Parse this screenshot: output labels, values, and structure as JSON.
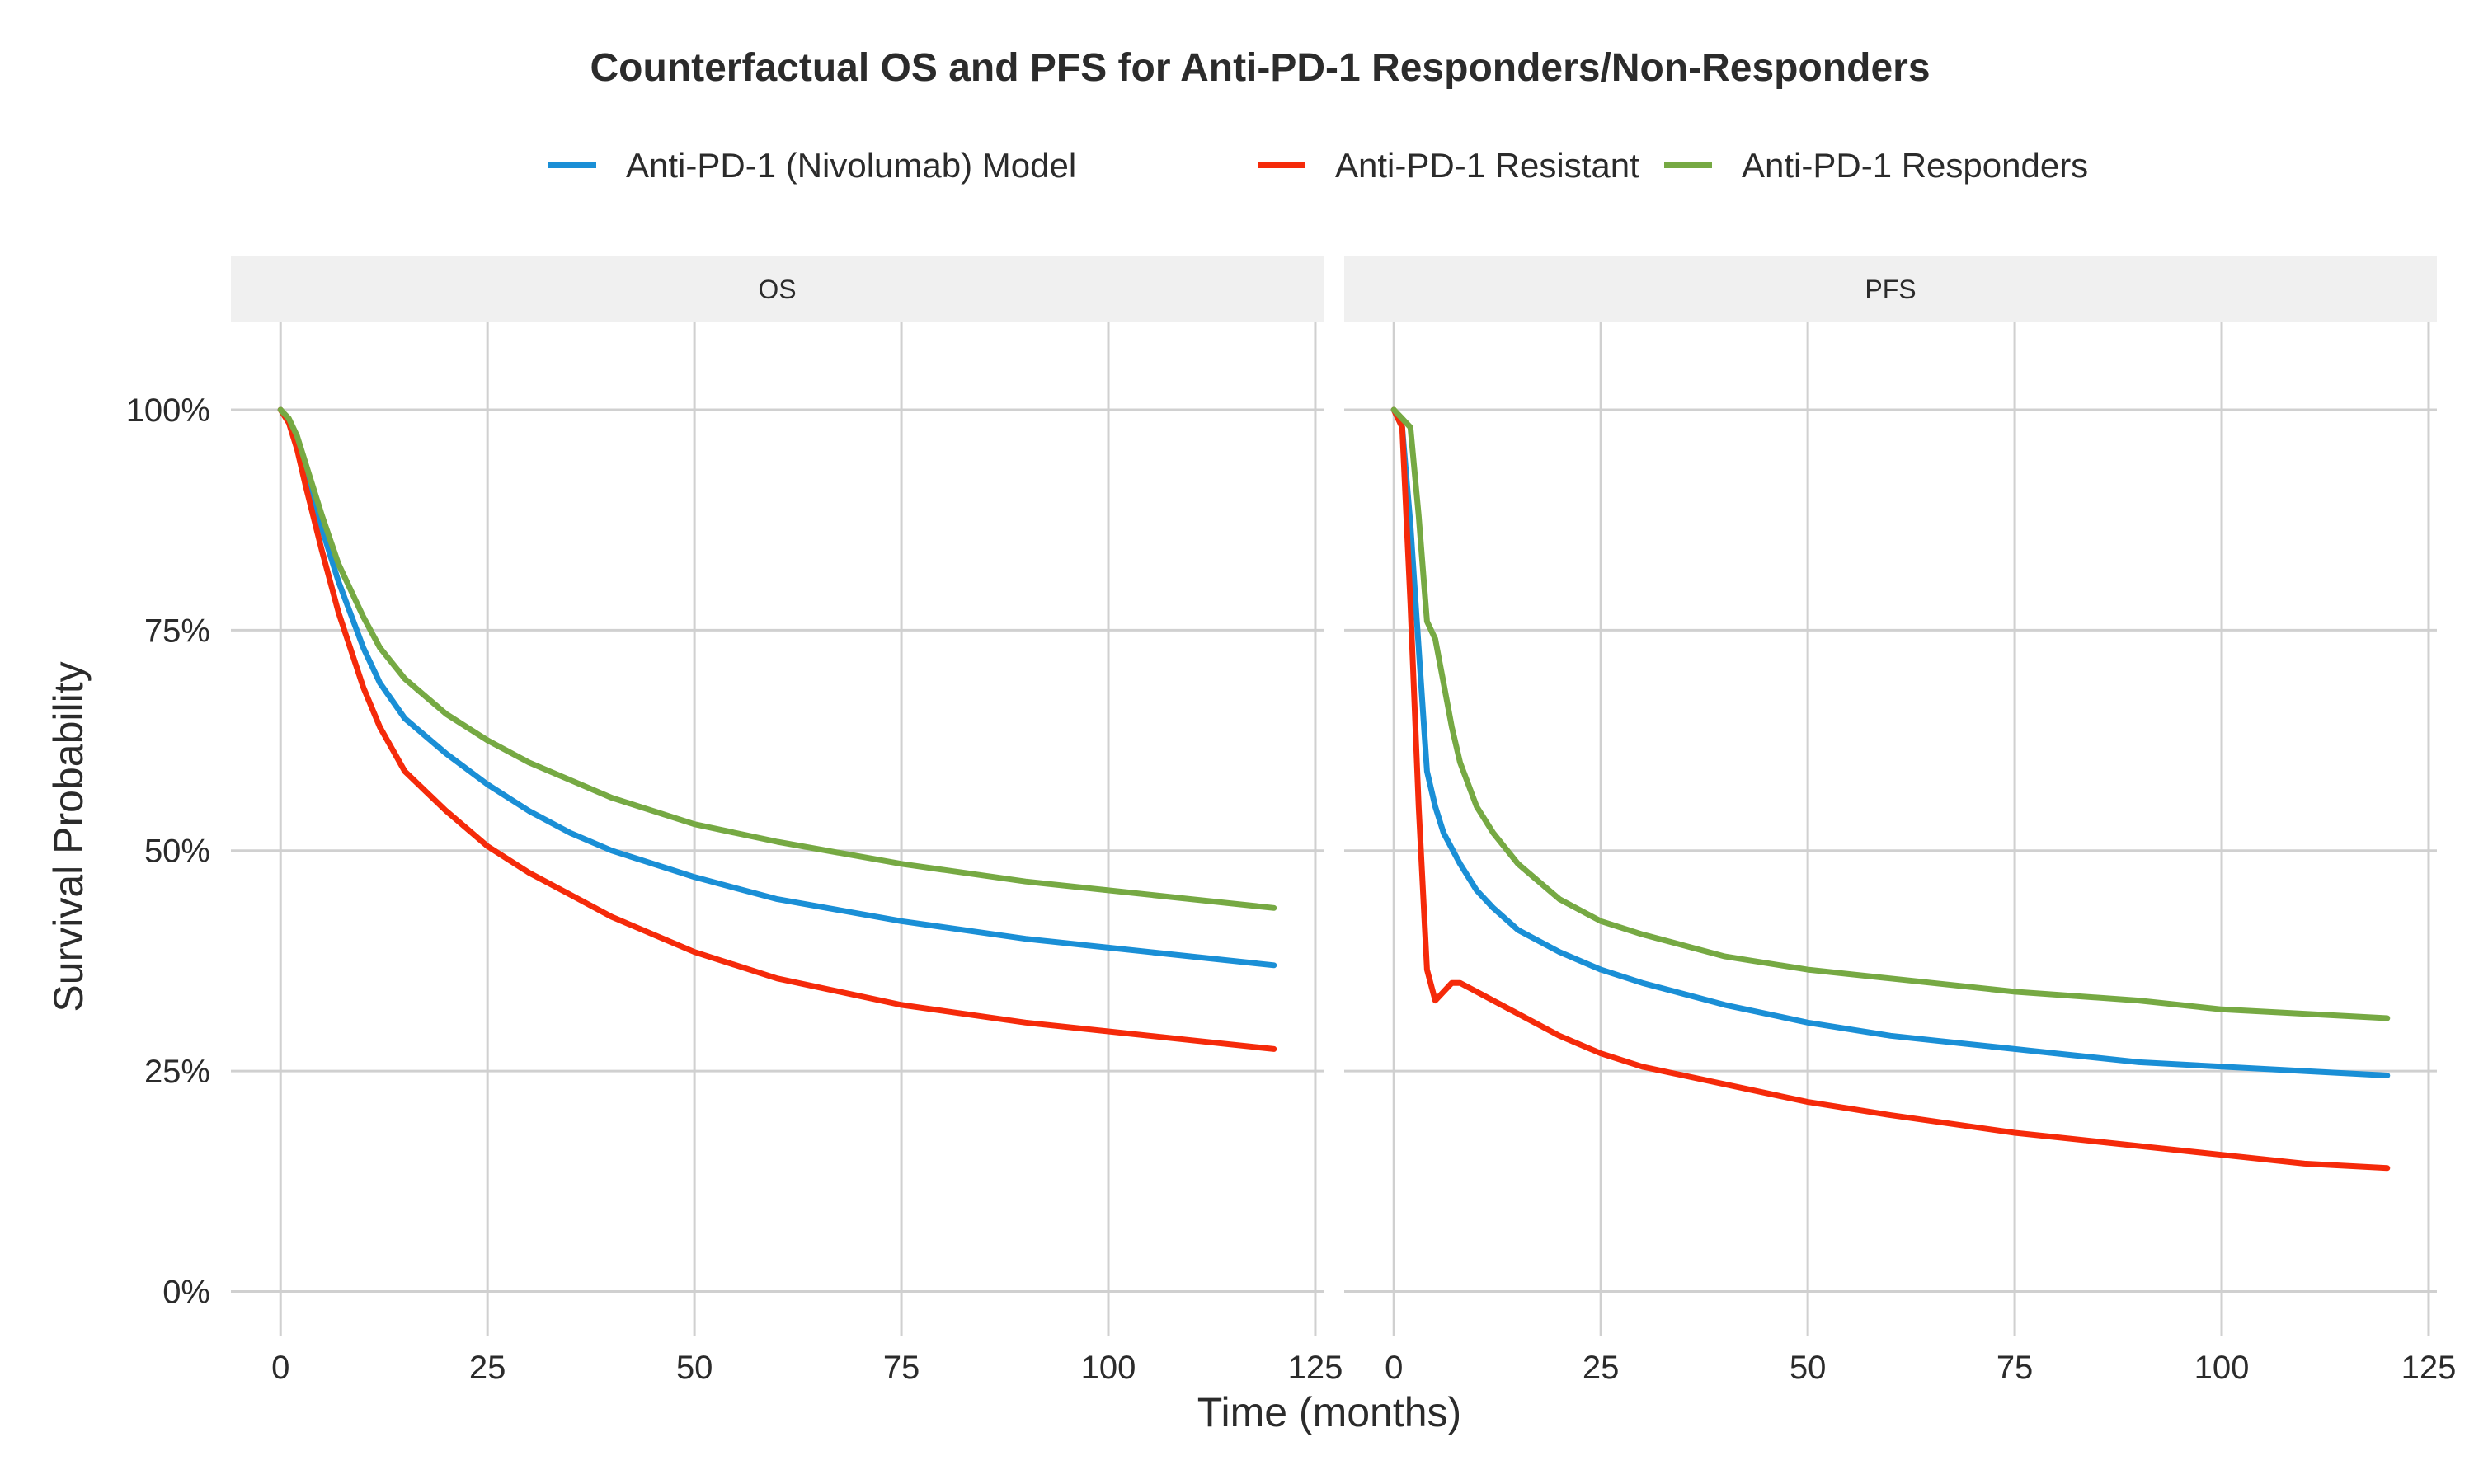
{
  "chart_data": {
    "type": "line",
    "title": "Counterfactual OS and PFS for Anti-PD-1 Responders/Non-Responders",
    "xlabel": "Time (months)",
    "ylabel": "Survival Probability",
    "xlim": [
      -6,
      126
    ],
    "ylim": [
      -5,
      110
    ],
    "x_ticks": [
      "0",
      "25",
      "50",
      "75",
      "100",
      "125"
    ],
    "y_ticks": [
      "0%",
      "25%",
      "50%",
      "75%",
      "100%"
    ],
    "x_tick_values": [
      0,
      25,
      50,
      75,
      100,
      125
    ],
    "y_tick_values": [
      0,
      25,
      50,
      75,
      100
    ],
    "grid": true,
    "legend_position": "top",
    "legend": [
      {
        "name": "Anti-PD-1 (Nivolumab) Model",
        "color": "#1a8fd6"
      },
      {
        "name": "Anti-PD-1 Resistant",
        "color": "#f52a0a"
      },
      {
        "name": "Anti-PD-1 Responders",
        "color": "#76a943"
      }
    ],
    "panels": [
      {
        "label": "OS",
        "series": [
          {
            "name": "Anti-PD-1 (Nivolumab) Model",
            "color": "#1a8fd6",
            "x": [
              0,
              1,
              2,
              3,
              5,
              7,
              10,
              12,
              15,
              20,
              25,
              30,
              35,
              40,
              50,
              60,
              75,
              90,
              100,
              110,
              120
            ],
            "y": [
              100,
              98.8,
              96.5,
              93,
              86.5,
              80.5,
              73,
              69,
              65,
              61,
              57.5,
              54.5,
              52,
              50,
              47,
              44.5,
              42,
              40,
              39,
              38,
              37
            ]
          },
          {
            "name": "Anti-PD-1 Resistant",
            "color": "#f52a0a",
            "x": [
              0,
              1,
              2,
              3,
              5,
              7,
              10,
              12,
              15,
              20,
              25,
              30,
              35,
              40,
              50,
              60,
              75,
              90,
              100,
              110,
              120
            ],
            "y": [
              100,
              98.5,
              95.5,
              91.5,
              84,
              77,
              68.5,
              64,
              59,
              54.5,
              50.5,
              47.5,
              45,
              42.5,
              38.5,
              35.5,
              32.5,
              30.5,
              29.5,
              28.5,
              27.5
            ]
          },
          {
            "name": "Anti-PD-1 Responders",
            "color": "#76a943",
            "x": [
              0,
              1,
              2,
              3,
              5,
              7,
              10,
              12,
              15,
              20,
              25,
              30,
              35,
              40,
              50,
              60,
              75,
              90,
              100,
              110,
              120
            ],
            "y": [
              100,
              99,
              97,
              94,
              88,
              82.5,
              76.5,
              73,
              69.5,
              65.5,
              62.5,
              60,
              58,
              56,
              53,
              51,
              48.5,
              46.5,
              45.5,
              44.5,
              43.5
            ]
          }
        ]
      },
      {
        "label": "PFS",
        "series": [
          {
            "name": "Anti-PD-1 (Nivolumab) Model",
            "color": "#1a8fd6",
            "x": [
              0,
              1,
              2,
              3,
              4,
              5,
              6,
              8,
              10,
              12,
              15,
              20,
              25,
              30,
              40,
              50,
              60,
              75,
              90,
              100,
              110,
              120
            ],
            "y": [
              100,
              98,
              87,
              73,
              59,
              55,
              52,
              48.5,
              45.5,
              43.5,
              41,
              38.5,
              36.5,
              35,
              32.5,
              30.5,
              29,
              27.5,
              26,
              25.5,
              25,
              24.5
            ]
          },
          {
            "name": "Anti-PD-1 Resistant",
            "color": "#f52a0a",
            "x": [
              0,
              1,
              2,
              3,
              4,
              5,
              6,
              7,
              8,
              10,
              12,
              15,
              20,
              25,
              30,
              40,
              50,
              60,
              75,
              90,
              100,
              110,
              120
            ],
            "y": [
              100,
              98,
              78,
              55,
              36.5,
              33,
              34,
              35,
              35,
              34,
              33,
              31.5,
              29,
              27,
              25.5,
              23.5,
              21.5,
              20,
              18,
              16.5,
              15.5,
              14.5,
              14
            ]
          },
          {
            "name": "Anti-PD-1 Responders",
            "color": "#76a943",
            "x": [
              0,
              1,
              2,
              3,
              4,
              5,
              6,
              7,
              8,
              10,
              12,
              15,
              20,
              25,
              30,
              40,
              50,
              60,
              75,
              90,
              100,
              110,
              120
            ],
            "y": [
              100,
              99,
              98,
              88,
              76,
              74,
              69,
              64,
              60,
              55,
              52,
              48.5,
              44.5,
              42,
              40.5,
              38,
              36.5,
              35.5,
              34,
              33,
              32,
              31.5,
              31
            ]
          }
        ]
      }
    ]
  }
}
